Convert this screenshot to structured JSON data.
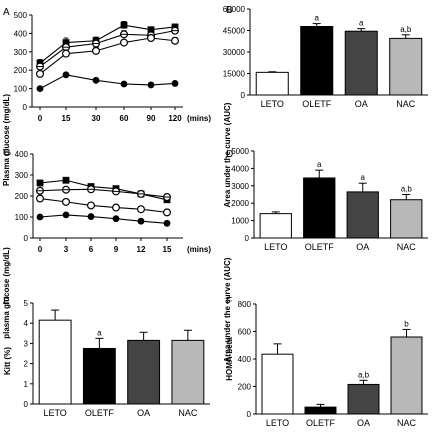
{
  "chart_data": [
    {
      "panel": "A",
      "type": "line",
      "ylabel": "Plasma glucose (mg/dL)",
      "xunit": "(mins)",
      "x": [
        0,
        15,
        30,
        60,
        90,
        120
      ],
      "xticks": [
        "0",
        "15",
        "30",
        "60",
        "90",
        "120"
      ],
      "ylim": [
        0,
        500
      ],
      "yticks": [
        "0",
        "100",
        "200",
        "300",
        "400",
        "500"
      ],
      "series": [
        {
          "marker": "filled-square",
          "values": [
            238,
            350,
            360,
            445,
            420,
            435
          ],
          "err": [
            20,
            25,
            20,
            20,
            15,
            15
          ]
        },
        {
          "marker": "cross-circle",
          "values": [
            220,
            325,
            345,
            395,
            390,
            415
          ],
          "err": [
            15,
            20,
            20,
            20,
            20,
            15
          ]
        },
        {
          "marker": "open-circle",
          "values": [
            180,
            290,
            305,
            350,
            375,
            360
          ],
          "err": [
            15,
            20,
            20,
            15,
            15,
            15
          ]
        },
        {
          "marker": "filled-circle",
          "values": [
            100,
            175,
            145,
            125,
            120,
            128
          ],
          "err": [
            5,
            8,
            6,
            5,
            5,
            5
          ]
        }
      ]
    },
    {
      "panel": "B",
      "type": "bar",
      "ylabel": "Area under the curve (AUC)",
      "categories": [
        "LETO",
        "OLETF",
        "OA",
        "NAC"
      ],
      "values": [
        15800,
        47800,
        44500,
        39500
      ],
      "err": [
        400,
        2000,
        1800,
        2500
      ],
      "sig": [
        "",
        "a",
        "a",
        "a,b"
      ],
      "fills": [
        "#ffffff",
        "#000000",
        "#444444",
        "#b8b8b8"
      ],
      "ylim": [
        0,
        60000
      ],
      "yticks": [
        "0",
        "15000",
        "30000",
        "45000",
        "60000"
      ]
    },
    {
      "panel": "C",
      "type": "line",
      "ylabel": "plasma glucose (mg/dL)",
      "xunit": "(mins)",
      "x": [
        0,
        3,
        6,
        9,
        12,
        15
      ],
      "xticks": [
        "0",
        "3",
        "6",
        "9",
        "12",
        "15"
      ],
      "ylim": [
        0,
        400
      ],
      "yticks": [
        "0",
        "100",
        "200",
        "300",
        "400"
      ],
      "series": [
        {
          "marker": "filled-square",
          "values": [
            262,
            275,
            245,
            235,
            210,
            182
          ],
          "err": [
            10,
            12,
            10,
            10,
            10,
            10
          ]
        },
        {
          "marker": "cross-circle",
          "values": [
            225,
            230,
            232,
            222,
            210,
            195
          ],
          "err": [
            8,
            8,
            8,
            8,
            8,
            8
          ]
        },
        {
          "marker": "open-circle",
          "values": [
            188,
            172,
            155,
            145,
            137,
            122
          ],
          "err": [
            8,
            8,
            8,
            8,
            6,
            6
          ]
        },
        {
          "marker": "filled-circle",
          "values": [
            100,
            110,
            102,
            92,
            80,
            70
          ],
          "err": [
            5,
            6,
            5,
            5,
            5,
            5
          ]
        }
      ]
    },
    {
      "panel": "D",
      "type": "bar",
      "ylabel": "Area under the curve (AUC)",
      "categories": [
        "LETO",
        "OLETF",
        "OA",
        "NAC"
      ],
      "values": [
        1400,
        3450,
        2650,
        2200
      ],
      "err": [
        100,
        450,
        500,
        300
      ],
      "sig": [
        "",
        "a",
        "a",
        "a,b"
      ],
      "fills": [
        "#ffffff",
        "#000000",
        "#444444",
        "#b8b8b8"
      ],
      "ylim": [
        0,
        5000
      ],
      "yticks": [
        "0",
        "1000",
        "2000",
        "3000",
        "4000",
        "5000"
      ]
    },
    {
      "panel": "E",
      "type": "bar",
      "ylabel": "Kitt (%)",
      "categories": [
        "LETO",
        "OLETF",
        "OA",
        "NAC"
      ],
      "values": [
        4.15,
        2.75,
        3.15,
        3.15
      ],
      "err": [
        0.5,
        0.5,
        0.4,
        0.5
      ],
      "sig": [
        "",
        "a",
        "",
        ""
      ],
      "fills": [
        "#ffffff",
        "#000000",
        "#444444",
        "#b8b8b8"
      ],
      "ylim": [
        0,
        5
      ],
      "yticks": [
        "0",
        "1",
        "2",
        "3",
        "4",
        "5"
      ]
    },
    {
      "panel": "F",
      "type": "bar",
      "ylabel": "HOMA-beta",
      "categories": [
        "LETO",
        "OLETF",
        "OA",
        "NAC"
      ],
      "values": [
        435,
        50,
        215,
        560
      ],
      "err": [
        75,
        20,
        30,
        55
      ],
      "sig": [
        "",
        "",
        "a,b",
        "b"
      ],
      "fills": [
        "#ffffff",
        "#000000",
        "#444444",
        "#b8b8b8"
      ],
      "ylim": [
        0,
        800
      ],
      "yticks": [
        "0",
        "200",
        "400",
        "600",
        "800"
      ]
    }
  ]
}
